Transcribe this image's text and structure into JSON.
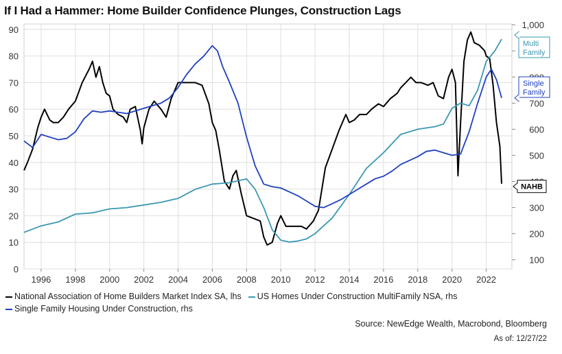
{
  "title": "If I Had a Hammer: Home Builder Confidence Plunges, Construction Lags",
  "source": "Source: NewEdge Wealth, Macrobond, Bloomberg",
  "as_of": "As of: 12/27/22",
  "colors": {
    "nahb": "#000000",
    "multi": "#3a97b2",
    "single": "#1f3fbf",
    "grid": "#dedede"
  },
  "chart_data": {
    "type": "line",
    "title": "If I Had a Hammer: Home Builder Confidence Plunges, Construction Lags",
    "x_range": [
      1995,
      2023.5
    ],
    "x_ticks": [
      1996,
      1998,
      2000,
      2002,
      2004,
      2006,
      2008,
      2010,
      2012,
      2014,
      2016,
      2018,
      2020,
      2022
    ],
    "x_tick_labels": [
      "1996",
      "1998",
      "2000",
      "2002",
      "2004",
      "2006",
      "2008",
      "2010",
      "2012",
      "2014",
      "2016",
      "2018",
      "2020",
      "2022"
    ],
    "y_left": {
      "label": "lhs",
      "range": [
        0,
        92
      ],
      "ticks": [
        0,
        10,
        20,
        30,
        40,
        50,
        60,
        70,
        80,
        90
      ],
      "tick_labels": [
        "0",
        "10",
        "20",
        "30",
        "40",
        "50",
        "60",
        "70",
        "80",
        "90"
      ]
    },
    "y_right": {
      "label": "rhs",
      "range": [
        65,
        1003
      ],
      "ticks": [
        100,
        200,
        300,
        400,
        500,
        600,
        700,
        800,
        900,
        1000
      ],
      "tick_labels": [
        "100",
        "200",
        "300",
        "400",
        "500",
        "600",
        "700",
        "800",
        "900",
        "1,000"
      ]
    },
    "end_labels": {
      "multi": "Multi Family",
      "single": "Single Family",
      "nahb": "NAHB"
    },
    "legend": [
      "National Association of Home Builders Market Index SA, lhs",
      "US Homes Under Construction MultiFamily NSA, rhs",
      "Single Family Housing Under Construction, rhs"
    ],
    "series": [
      {
        "name": "National Association of Home Builders Market Index SA, lhs",
        "axis": "left",
        "color": "#000000",
        "x": [
          1995.0,
          1995.2,
          1995.5,
          1995.8,
          1996.0,
          1996.2,
          1996.5,
          1996.7,
          1997.0,
          1997.3,
          1997.6,
          1998.0,
          1998.4,
          1998.8,
          1999.0,
          1999.2,
          1999.4,
          1999.6,
          1999.8,
          2000.0,
          2000.2,
          2000.5,
          2000.8,
          2001.0,
          2001.2,
          2001.5,
          2001.8,
          2001.9,
          2002.0,
          2002.3,
          2002.6,
          2003.0,
          2003.3,
          2003.6,
          2004.0,
          2004.3,
          2004.6,
          2005.0,
          2005.4,
          2005.8,
          2006.0,
          2006.2,
          2006.4,
          2006.7,
          2007.0,
          2007.2,
          2007.4,
          2007.7,
          2008.0,
          2008.4,
          2008.8,
          2009.0,
          2009.2,
          2009.5,
          2009.8,
          2010.0,
          2010.3,
          2010.6,
          2010.9,
          2011.2,
          2011.5,
          2011.9,
          2012.2,
          2012.6,
          2013.0,
          2013.4,
          2013.8,
          2014.0,
          2014.3,
          2014.6,
          2015.0,
          2015.3,
          2015.7,
          2016.0,
          2016.4,
          2016.8,
          2017.0,
          2017.3,
          2017.6,
          2017.9,
          2018.2,
          2018.6,
          2018.9,
          2019.2,
          2019.5,
          2019.8,
          2020.0,
          2020.2,
          2020.35,
          2020.5,
          2020.7,
          2020.9,
          2021.1,
          2021.3,
          2021.6,
          2021.9,
          2022.0,
          2022.2,
          2022.4,
          2022.6,
          2022.8,
          2022.9
        ],
        "values": [
          37,
          40,
          45,
          53,
          57,
          60,
          56,
          55,
          55,
          57,
          60,
          63,
          70,
          75,
          78,
          72,
          76,
          70,
          66,
          65,
          60,
          58,
          57,
          55,
          60,
          61,
          52,
          47,
          53,
          60,
          63,
          60,
          57,
          64,
          70,
          70,
          70,
          70,
          69,
          62,
          55,
          52,
          45,
          33,
          30,
          35,
          37,
          28,
          20,
          19,
          18,
          12,
          9,
          10,
          17,
          20,
          16,
          16,
          16,
          16,
          15,
          18,
          22,
          38,
          45,
          52,
          58,
          55,
          56,
          58,
          58,
          60,
          62,
          61,
          64,
          66,
          68,
          70,
          72,
          70,
          70,
          69,
          70,
          65,
          64,
          72,
          75,
          70,
          35,
          55,
          78,
          86,
          89,
          85,
          84,
          82,
          80,
          79,
          69,
          55,
          46,
          32
        ],
        "values_note": "NAHB builder confidence index"
      },
      {
        "name": "US Homes Under Construction MultiFamily NSA, rhs",
        "axis": "right",
        "color": "#3a97b2",
        "x": [
          1995.0,
          1996.0,
          1997.0,
          1998.0,
          1999.0,
          2000.0,
          2001.0,
          2002.0,
          2003.0,
          2004.0,
          2005.0,
          2006.0,
          2007.0,
          2008.0,
          2008.5,
          2009.0,
          2009.5,
          2010.0,
          2010.5,
          2011.0,
          2011.5,
          2012.0,
          2013.0,
          2014.0,
          2015.0,
          2016.0,
          2017.0,
          2018.0,
          2019.0,
          2019.5,
          2020.0,
          2020.5,
          2021.0,
          2021.5,
          2022.0,
          2022.5,
          2022.9
        ],
        "values": [
          205,
          230,
          245,
          275,
          280,
          295,
          300,
          310,
          320,
          335,
          370,
          390,
          395,
          410,
          370,
          300,
          215,
          175,
          168,
          172,
          180,
          200,
          260,
          350,
          450,
          510,
          580,
          600,
          610,
          620,
          680,
          700,
          690,
          750,
          860,
          900,
          945
        ]
      },
      {
        "name": "Single Family Housing Under Construction, rhs",
        "axis": "right",
        "color": "#1f3fbf",
        "x": [
          1995.0,
          1995.2,
          1995.5,
          1996.0,
          1996.5,
          1997.0,
          1997.5,
          1998.0,
          1998.5,
          1999.0,
          1999.5,
          2000.0,
          2000.5,
          2001.0,
          2001.5,
          2002.0,
          2002.5,
          2003.0,
          2003.5,
          2004.0,
          2004.5,
          2005.0,
          2005.5,
          2006.0,
          2006.3,
          2006.6,
          2007.0,
          2007.5,
          2008.0,
          2008.5,
          2009.0,
          2009.5,
          2010.0,
          2010.5,
          2011.0,
          2011.5,
          2012.0,
          2012.5,
          2013.0,
          2013.5,
          2014.0,
          2014.5,
          2015.0,
          2015.5,
          2016.0,
          2016.5,
          2017.0,
          2017.5,
          2018.0,
          2018.5,
          2019.0,
          2019.5,
          2020.0,
          2020.5,
          2021.0,
          2021.5,
          2022.0,
          2022.3,
          2022.6,
          2022.9
        ],
        "values": [
          555,
          545,
          530,
          580,
          570,
          560,
          565,
          590,
          640,
          670,
          665,
          670,
          665,
          660,
          670,
          680,
          690,
          700,
          720,
          760,
          810,
          850,
          880,
          920,
          900,
          840,
          780,
          700,
          570,
          460,
          390,
          380,
          375,
          360,
          345,
          325,
          305,
          300,
          315,
          330,
          350,
          370,
          390,
          410,
          420,
          440,
          465,
          480,
          495,
          515,
          520,
          510,
          500,
          505,
          590,
          700,
          800,
          830,
          790,
          720
        ]
      }
    ]
  }
}
